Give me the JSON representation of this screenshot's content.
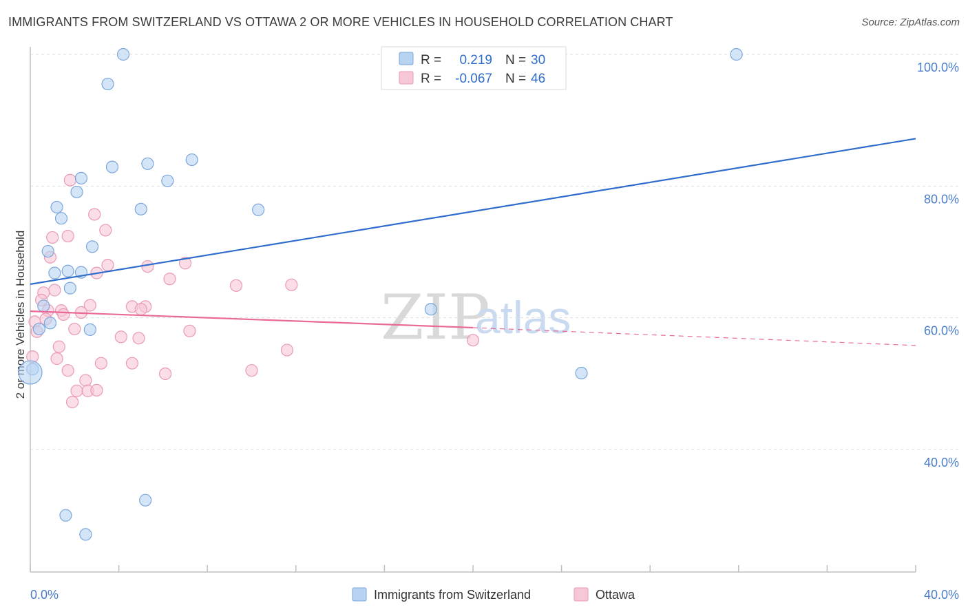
{
  "header": {
    "title": "IMMIGRANTS FROM SWITZERLAND VS OTTAWA 2 OR MORE VEHICLES IN HOUSEHOLD CORRELATION CHART",
    "source": "Source: ZipAtlas.com"
  },
  "watermark": {
    "zip": "ZIP",
    "atlas": "atlas"
  },
  "colors": {
    "blue_fill": "#b8d3f2",
    "blue_stroke": "#7aa6dc",
    "blue_line": "#2f6ccc",
    "pink_fill": "#f6c7d6",
    "pink_stroke": "#e99ab4",
    "pink_line": "#e86a95",
    "grid": "#dddddd",
    "tick_label": "#4a7cc9"
  },
  "legend": {
    "rows": [
      {
        "r_label": "R =",
        "r_value": "0.219",
        "n_label": "N =",
        "n_value": "30"
      },
      {
        "r_label": "R =",
        "r_value": "-0.067",
        "n_label": "N =",
        "n_value": "46"
      }
    ]
  },
  "chart_data": {
    "type": "scatter",
    "xlabel": "",
    "ylabel": "2 or more Vehicles in Household",
    "xlim": [
      0,
      40
    ],
    "ylim": [
      20,
      104
    ],
    "x_tick_labels": [
      "0.0%",
      "40.0%"
    ],
    "y_ticks": [
      40,
      60,
      80,
      100
    ],
    "y_tick_labels": [
      "40.0%",
      "60.0%",
      "80.0%",
      "100.0%"
    ],
    "grid": true,
    "legend_position": "top-center",
    "series": [
      {
        "name": "Immigrants from Switzerland",
        "color": "#b8d3f2",
        "trend": {
          "x": [
            0,
            40
          ],
          "y": [
            65.1,
            87.2
          ],
          "dashed_from": null
        },
        "points": [
          {
            "x": 4.2,
            "y": 100
          },
          {
            "x": 31.9,
            "y": 100
          },
          {
            "x": 3.5,
            "y": 95.5
          },
          {
            "x": 3.7,
            "y": 82.9
          },
          {
            "x": 5.3,
            "y": 83.4
          },
          {
            "x": 7.3,
            "y": 84.0
          },
          {
            "x": 2.3,
            "y": 81.2
          },
          {
            "x": 6.2,
            "y": 80.8
          },
          {
            "x": 2.1,
            "y": 79.1
          },
          {
            "x": 1.2,
            "y": 76.8
          },
          {
            "x": 5.0,
            "y": 76.5
          },
          {
            "x": 10.3,
            "y": 76.4
          },
          {
            "x": 1.4,
            "y": 75.1
          },
          {
            "x": 2.8,
            "y": 70.8
          },
          {
            "x": 0.8,
            "y": 70.1
          },
          {
            "x": 1.7,
            "y": 67.1
          },
          {
            "x": 2.3,
            "y": 66.9
          },
          {
            "x": 1.1,
            "y": 66.8
          },
          {
            "x": 1.8,
            "y": 64.5
          },
          {
            "x": 0.6,
            "y": 61.8
          },
          {
            "x": 18.1,
            "y": 61.3
          },
          {
            "x": 0.9,
            "y": 59.2
          },
          {
            "x": 0.4,
            "y": 58.3
          },
          {
            "x": 2.7,
            "y": 58.2
          },
          {
            "x": 0.1,
            "y": 52.2
          },
          {
            "x": 0.0,
            "y": 51.7
          },
          {
            "x": 24.9,
            "y": 51.6
          },
          {
            "x": 5.2,
            "y": 32.3
          },
          {
            "x": 1.6,
            "y": 30.0
          },
          {
            "x": 2.5,
            "y": 27.1
          }
        ]
      },
      {
        "name": "Ottawa",
        "color": "#f6c7d6",
        "trend": {
          "x": [
            0,
            20,
            40
          ],
          "y": [
            61.0,
            58.5,
            55.8
          ],
          "dashed_from": 20
        },
        "points": [
          {
            "x": 1.8,
            "y": 80.9
          },
          {
            "x": 2.9,
            "y": 75.7
          },
          {
            "x": 3.4,
            "y": 73.3
          },
          {
            "x": 1.7,
            "y": 72.4
          },
          {
            "x": 1.0,
            "y": 72.2
          },
          {
            "x": 0.9,
            "y": 69.2
          },
          {
            "x": 7.0,
            "y": 68.3
          },
          {
            "x": 3.5,
            "y": 68.0
          },
          {
            "x": 5.3,
            "y": 67.8
          },
          {
            "x": 3.0,
            "y": 66.8
          },
          {
            "x": 6.3,
            "y": 65.9
          },
          {
            "x": 9.3,
            "y": 64.9
          },
          {
            "x": 11.8,
            "y": 65.0
          },
          {
            "x": 1.1,
            "y": 64.2
          },
          {
            "x": 0.6,
            "y": 63.8
          },
          {
            "x": 0.5,
            "y": 62.7
          },
          {
            "x": 2.7,
            "y": 61.9
          },
          {
            "x": 4.6,
            "y": 61.7
          },
          {
            "x": 5.2,
            "y": 61.7
          },
          {
            "x": 5.0,
            "y": 61.3
          },
          {
            "x": 1.4,
            "y": 61.1
          },
          {
            "x": 0.8,
            "y": 61.1
          },
          {
            "x": 2.3,
            "y": 60.8
          },
          {
            "x": 1.5,
            "y": 60.5
          },
          {
            "x": 0.7,
            "y": 59.8
          },
          {
            "x": 0.2,
            "y": 59.4
          },
          {
            "x": 2.0,
            "y": 58.3
          },
          {
            "x": 7.2,
            "y": 58.0
          },
          {
            "x": 0.3,
            "y": 57.9
          },
          {
            "x": 4.1,
            "y": 57.1
          },
          {
            "x": 4.9,
            "y": 56.9
          },
          {
            "x": 20.0,
            "y": 56.6
          },
          {
            "x": 1.3,
            "y": 55.6
          },
          {
            "x": 11.6,
            "y": 55.1
          },
          {
            "x": 0.1,
            "y": 54.1
          },
          {
            "x": 1.2,
            "y": 53.8
          },
          {
            "x": 3.2,
            "y": 53.1
          },
          {
            "x": 4.6,
            "y": 53.1
          },
          {
            "x": 1.7,
            "y": 52.0
          },
          {
            "x": 10.0,
            "y": 52.0
          },
          {
            "x": 6.1,
            "y": 51.5
          },
          {
            "x": 2.5,
            "y": 50.5
          },
          {
            "x": 2.1,
            "y": 48.9
          },
          {
            "x": 2.6,
            "y": 48.9
          },
          {
            "x": 1.9,
            "y": 47.2
          },
          {
            "x": 3.0,
            "y": 49.0
          }
        ]
      }
    ]
  }
}
